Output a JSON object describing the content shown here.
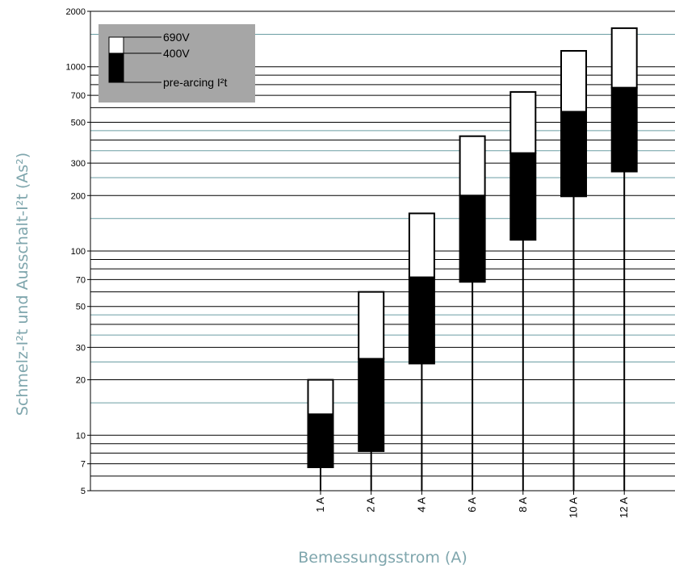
{
  "chart_data": {
    "type": "bar",
    "ylabel": "Schmelz-I²t und Ausschalt-I²t (As²)",
    "xlabel": "Bemessungsstrom (A)",
    "y_scale": "log",
    "ylim": [
      5,
      2000
    ],
    "y_ticks": [
      {
        "value": 5,
        "label": "5"
      },
      {
        "value": 7,
        "label": "7"
      },
      {
        "value": 10,
        "label": "10"
      },
      {
        "value": 20,
        "label": "20"
      },
      {
        "value": 30,
        "label": "30"
      },
      {
        "value": 50,
        "label": "50"
      },
      {
        "value": 70,
        "label": "70"
      },
      {
        "value": 100,
        "label": "100"
      },
      {
        "value": 200,
        "label": "200"
      },
      {
        "value": 300,
        "label": "300"
      },
      {
        "value": 500,
        "label": "500"
      },
      {
        "value": 700,
        "label": "700"
      },
      {
        "value": 1000,
        "label": "1000"
      },
      {
        "value": 2000,
        "label": "2000"
      }
    ],
    "gridlines_black": [
      6,
      7,
      8,
      9,
      10,
      20,
      30,
      40,
      50,
      60,
      70,
      80,
      90,
      100,
      200,
      300,
      400,
      500,
      600,
      700,
      800,
      900,
      1000
    ],
    "gridlines_teal": [
      15,
      25,
      35,
      45,
      150,
      250,
      350,
      450,
      1500
    ],
    "categories": [
      "1 A",
      "2 A",
      "4 A",
      "6 A",
      "8 A",
      "10 A",
      "12 A"
    ],
    "series": [
      {
        "name": "pre-arcing I²t",
        "values": [
          6.7,
          8.2,
          24.5,
          68,
          115,
          198,
          270
        ]
      },
      {
        "name": "400V",
        "values": [
          13,
          26,
          72,
          200,
          340,
          570,
          770
        ]
      },
      {
        "name": "690V",
        "values": [
          20,
          60,
          160,
          420,
          730,
          1220,
          1620
        ]
      }
    ],
    "legend": {
      "position": "top-left",
      "entries": [
        "690V",
        "400V",
        "pre-arcing I²t"
      ],
      "background": "#a6a6a6"
    },
    "colors": {
      "pre_arcing": "#000000",
      "v400": "#000000",
      "v690": "#ffffff",
      "grid_black": "#000000",
      "grid_teal": "#6a9ea3",
      "axis_title": "#7fa6ad"
    }
  }
}
